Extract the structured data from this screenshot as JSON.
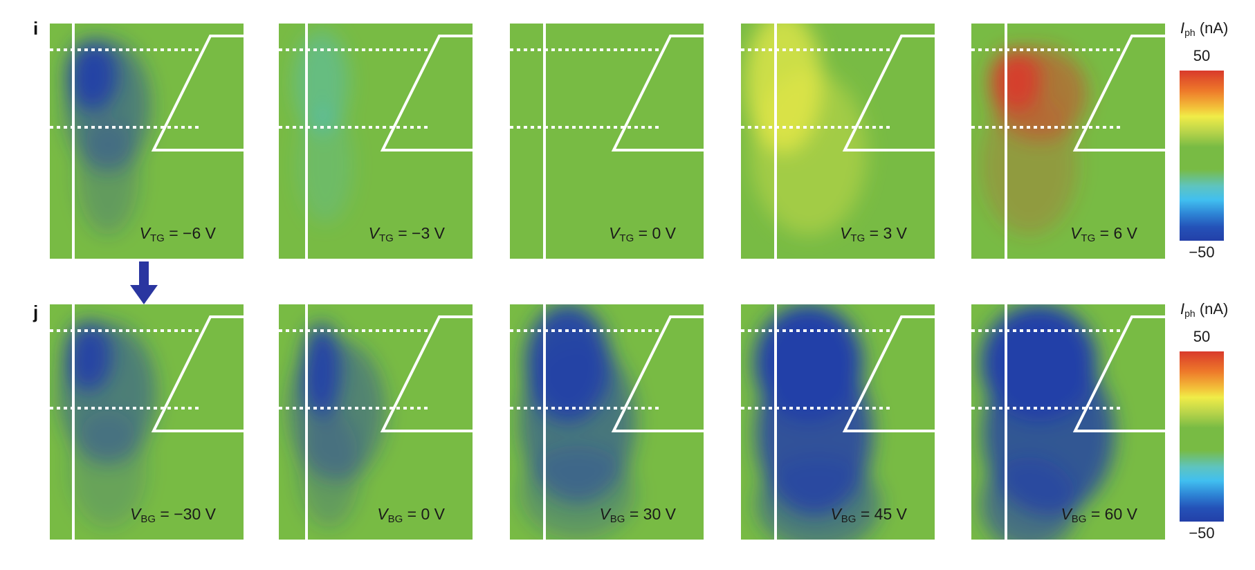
{
  "figure": {
    "rows": [
      {
        "label": "i",
        "gate": "TG",
        "panels": [
          {
            "variable": "V",
            "subscript": "TG",
            "value_text": "= −6 V",
            "voltage": -6,
            "unit": "V"
          },
          {
            "variable": "V",
            "subscript": "TG",
            "value_text": "= −3 V",
            "voltage": -3,
            "unit": "V"
          },
          {
            "variable": "V",
            "subscript": "TG",
            "value_text": "= 0 V",
            "voltage": 0,
            "unit": "V"
          },
          {
            "variable": "V",
            "subscript": "TG",
            "value_text": "= 3 V",
            "voltage": 3,
            "unit": "V"
          },
          {
            "variable": "V",
            "subscript": "TG",
            "value_text": "= 6 V",
            "voltage": 6,
            "unit": "V"
          }
        ],
        "colorbar": {
          "variable": "I",
          "subscript": "ph",
          "unit": "(nA)",
          "max": "50",
          "min": "−50"
        }
      },
      {
        "label": "j",
        "gate": "BG",
        "panels": [
          {
            "variable": "V",
            "subscript": "BG",
            "value_text": "= −30 V",
            "voltage": -30,
            "unit": "V"
          },
          {
            "variable": "V",
            "subscript": "BG",
            "value_text": "= 0 V",
            "voltage": 0,
            "unit": "V"
          },
          {
            "variable": "V",
            "subscript": "BG",
            "value_text": "= 30 V",
            "voltage": 30,
            "unit": "V"
          },
          {
            "variable": "V",
            "subscript": "BG",
            "value_text": "= 45 V",
            "voltage": 45,
            "unit": "V"
          },
          {
            "variable": "V",
            "subscript": "BG",
            "value_text": "= 60 V",
            "voltage": 60,
            "unit": "V"
          }
        ],
        "colorbar": {
          "variable": "I",
          "subscript": "ph",
          "unit": "(nA)",
          "max": "50",
          "min": "−50"
        }
      }
    ],
    "colors": {
      "background_green": "#78bb44",
      "red": "#d93a2b",
      "yellow": "#f0ec48",
      "cyan": "#41bff0",
      "blue": "#2340a8",
      "arrow": "#2a36a0"
    },
    "arrow_icon": "down-arrow-icon"
  }
}
